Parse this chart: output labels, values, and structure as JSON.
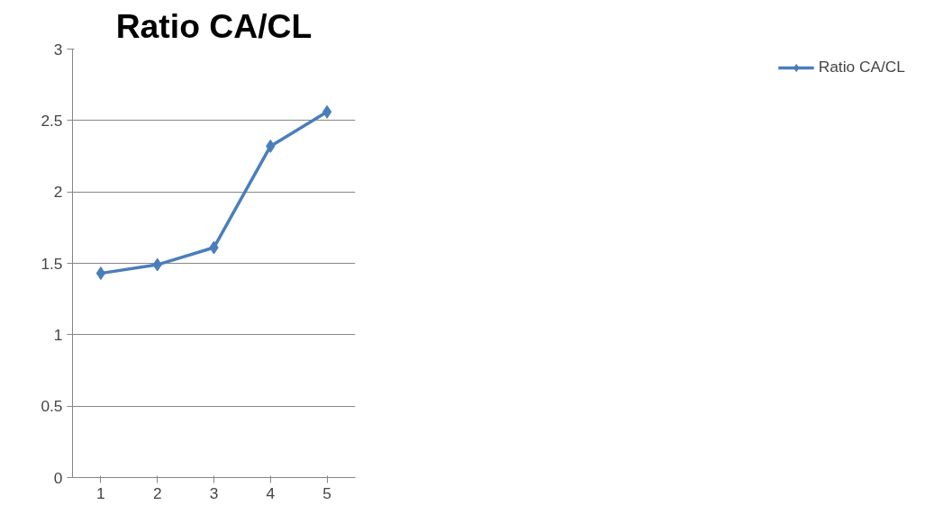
{
  "chart_data": {
    "type": "line",
    "title": "Ratio CA/CL",
    "categories": [
      "1",
      "2",
      "3",
      "4",
      "5"
    ],
    "series": [
      {
        "name": "Ratio CA/CL",
        "color": "#4a7ebb",
        "values": [
          1.43,
          1.49,
          1.61,
          2.32,
          2.56
        ]
      }
    ],
    "ylim": [
      0,
      3
    ],
    "yticks": [
      0,
      0.5,
      1,
      1.5,
      2,
      2.5,
      3
    ],
    "grid": "y",
    "legend": "right",
    "marker": "diamond",
    "line_style": "solid"
  }
}
